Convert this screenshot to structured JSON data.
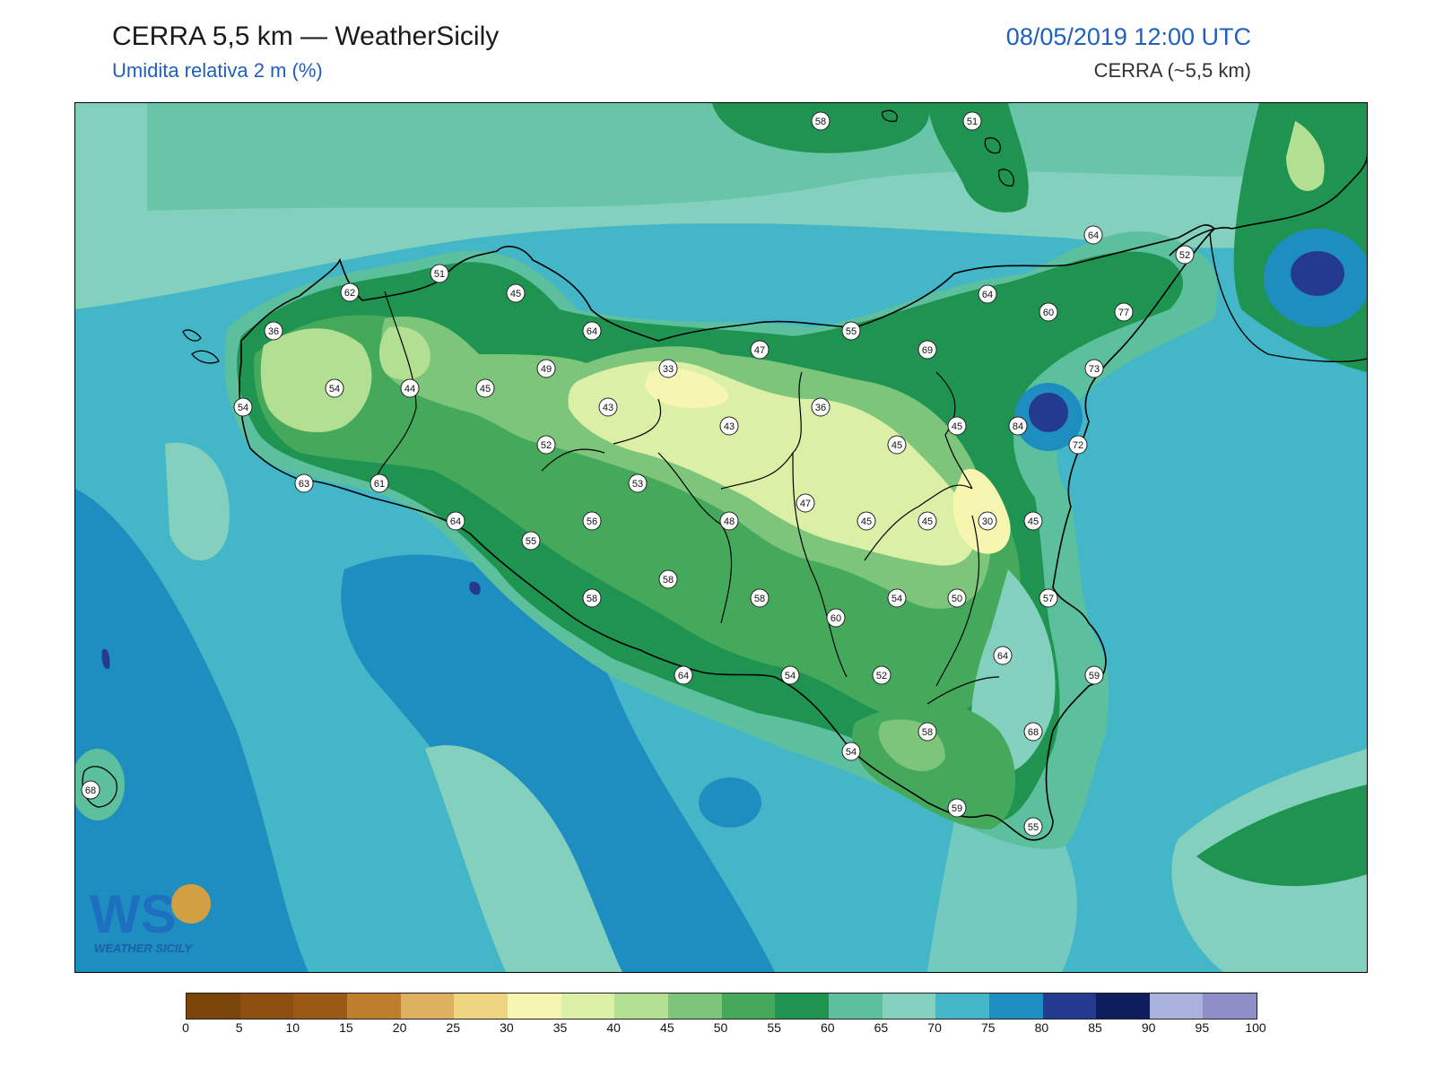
{
  "header": {
    "title": "CERRA 5,5 km — WeatherSicily",
    "subtitle": "Umidita relativa 2 m (%)",
    "datetime": "08/05/2019 12:00 UTC",
    "source": "CERRA (~5,5 km)"
  },
  "logo": {
    "letters": "WS",
    "name": "WEATHER SICILY"
  },
  "colorbar": {
    "ticks": [
      "0",
      "5",
      "10",
      "15",
      "20",
      "25",
      "30",
      "35",
      "40",
      "45",
      "50",
      "55",
      "60",
      "65",
      "70",
      "75",
      "80",
      "85",
      "90",
      "95",
      "100"
    ],
    "colors": [
      "#7a4508",
      "#8d4f0f",
      "#9a5a16",
      "#bf7e2c",
      "#ddb060",
      "#eed47f",
      "#f7f6b1",
      "#dcefa6",
      "#b3df92",
      "#7cc57a",
      "#45a95c",
      "#1e9450",
      "#5cc09e",
      "#82d0bd",
      "#43b6c7",
      "#1e8ec1",
      "#243a8f",
      "#0e1d5c",
      "#a8b2dc",
      "#8d8fc6"
    ]
  },
  "stations": [
    {
      "value": "58"
    },
    {
      "value": "51"
    },
    {
      "value": "64"
    },
    {
      "value": "52"
    },
    {
      "value": "51"
    },
    {
      "value": "45"
    },
    {
      "value": "62"
    },
    {
      "value": "64"
    },
    {
      "value": "60"
    },
    {
      "value": "77"
    },
    {
      "value": "36"
    },
    {
      "value": "64"
    },
    {
      "value": "55"
    },
    {
      "value": "47"
    },
    {
      "value": "69"
    },
    {
      "value": "49"
    },
    {
      "value": "33"
    },
    {
      "value": "73"
    },
    {
      "value": "54"
    },
    {
      "value": "44"
    },
    {
      "value": "45"
    },
    {
      "value": "43"
    },
    {
      "value": "36"
    },
    {
      "value": "84"
    },
    {
      "value": "54"
    },
    {
      "value": "45"
    },
    {
      "value": "52"
    },
    {
      "value": "43"
    },
    {
      "value": "45"
    },
    {
      "value": "72"
    },
    {
      "value": "63"
    },
    {
      "value": "61"
    },
    {
      "value": "53"
    },
    {
      "value": "47"
    },
    {
      "value": "64"
    },
    {
      "value": "56"
    },
    {
      "value": "48"
    },
    {
      "value": "45"
    },
    {
      "value": "45"
    },
    {
      "value": "30"
    },
    {
      "value": "45"
    },
    {
      "value": "55"
    },
    {
      "value": "58"
    },
    {
      "value": "58"
    },
    {
      "value": "58"
    },
    {
      "value": "54"
    },
    {
      "value": "50"
    },
    {
      "value": "57"
    },
    {
      "value": "60"
    },
    {
      "value": "64"
    },
    {
      "value": "64"
    },
    {
      "value": "54"
    },
    {
      "value": "52"
    },
    {
      "value": "59"
    },
    {
      "value": "58"
    },
    {
      "value": "68"
    },
    {
      "value": "54"
    },
    {
      "value": "68"
    },
    {
      "value": "59"
    },
    {
      "value": "55"
    }
  ]
}
